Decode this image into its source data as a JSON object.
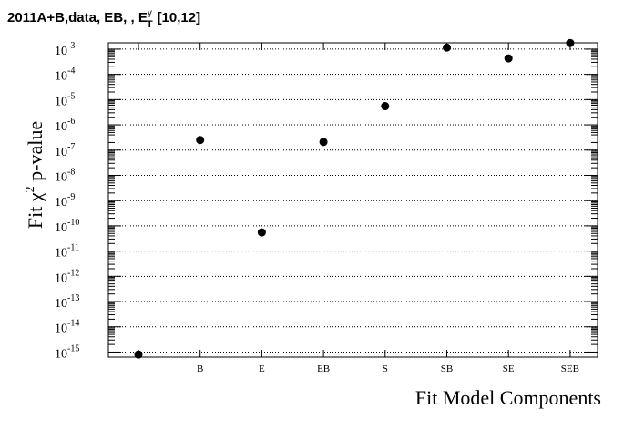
{
  "chart_data": {
    "type": "scatter",
    "title": "2011A+B,data, EB, , E",
    "title_sub": "T",
    "title_sup": "γ",
    "title_range": "[10,12]",
    "xlabel": "Fit Model Components",
    "ylabel_pre": "Fit χ",
    "ylabel_sup": "2",
    "ylabel_post": " p-value",
    "y_scale": "log",
    "ylim_exp": [
      -15.2,
      -2.75
    ],
    "y_tick_exponents": [
      -15,
      -14,
      -13,
      -12,
      -11,
      -10,
      -9,
      -8,
      -7,
      -6,
      -5,
      -4,
      -3
    ],
    "y_tick_base": "10",
    "y_grid": true,
    "categories": [
      "",
      "B",
      "E",
      "EB",
      "S",
      "SB",
      "SE",
      "SEB"
    ],
    "x": [
      "",
      "B",
      "E",
      "EB",
      "S",
      "SB",
      "SE",
      "SEB"
    ],
    "y": [
      8e-16,
      2.5e-07,
      5.5e-11,
      2.1e-07,
      5.5e-06,
      0.00115,
      0.00043,
      0.00175
    ],
    "marker_color": "#000000",
    "grid_color": "#000000"
  }
}
